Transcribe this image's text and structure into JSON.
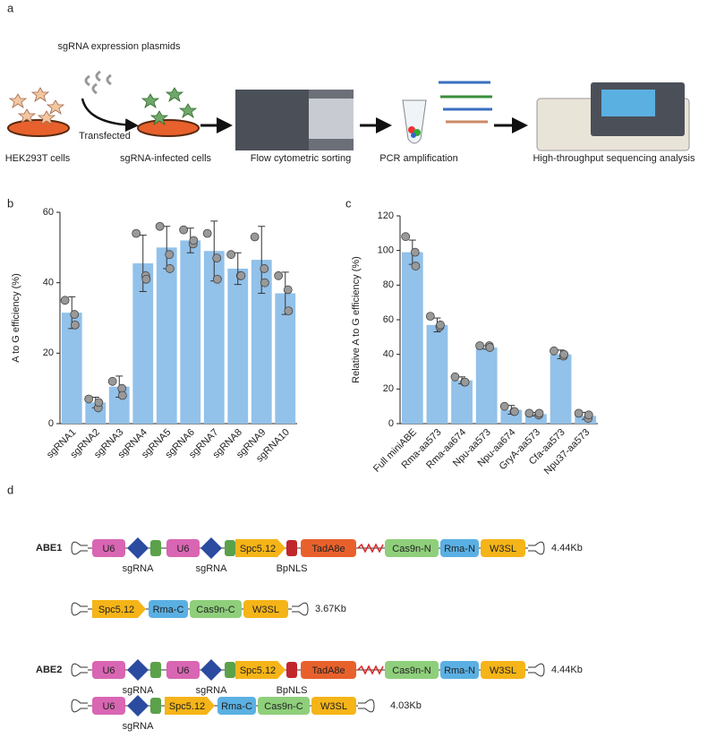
{
  "workflow": {
    "panel": "a",
    "plasmid_label": "sgRNA expression plasmids",
    "arrow_label": "Transfected",
    "steps": [
      "HEK293T cells",
      "sgRNA-infected cells",
      "Flow cytometric sorting",
      "PCR amplification",
      "High-throughput sequencing analysis"
    ]
  },
  "chart_data": [
    {
      "type": "bar",
      "panel": "b",
      "ylabel": "A to G efficiency (%)",
      "categories": [
        "sgRNA1",
        "sgRNA2",
        "sgRNA3",
        "sgRNA4",
        "sgRNA5",
        "sgRNA6",
        "sgRNA7",
        "sgRNA8",
        "sgRNA9",
        "sgRNA10"
      ],
      "values": [
        31.5,
        6,
        10.5,
        45.5,
        50,
        52,
        49,
        44,
        46.5,
        37
      ],
      "errors": [
        4.5,
        1.5,
        3,
        8,
        6,
        3.5,
        8.5,
        4.5,
        9.5,
        6
      ],
      "points": [
        [
          35,
          31,
          28
        ],
        [
          7,
          4.5,
          6
        ],
        [
          12,
          10,
          8
        ],
        [
          54,
          42,
          41
        ],
        [
          56,
          48,
          44
        ],
        [
          55,
          51,
          52
        ],
        [
          54,
          47,
          41
        ],
        [
          48,
          42,
          42
        ],
        [
          53,
          44,
          40
        ],
        [
          42,
          38,
          32
        ]
      ],
      "color": "#92c1e9",
      "point_color": "#999999",
      "ylim": [
        0,
        60
      ],
      "yticks": [
        0,
        20,
        40,
        60
      ]
    },
    {
      "type": "bar",
      "panel": "c",
      "ylabel": "Relative A to G efficiency (%)",
      "categories": [
        "Full miniABE",
        "Rma-aa573",
        "Rma-aa674",
        "Npu-aa573",
        "Npu-aa674",
        "GryA-aa573",
        "Cfa-aa573",
        "Npu37-aa573"
      ],
      "values": [
        99,
        57,
        25,
        44,
        8,
        5.5,
        40,
        4.5
      ],
      "errors": [
        7,
        4,
        2,
        1,
        2.5,
        1,
        2.5,
        2
      ],
      "points": [
        [
          108,
          99,
          91
        ],
        [
          62,
          56,
          57
        ],
        [
          27,
          24,
          24
        ],
        [
          45,
          45,
          44
        ],
        [
          10,
          7,
          7
        ],
        [
          6,
          5,
          6
        ],
        [
          42,
          39,
          40
        ],
        [
          6,
          3,
          5
        ]
      ],
      "color": "#92c1e9",
      "point_color": "#999999",
      "ylim": [
        0,
        120
      ],
      "yticks": [
        0,
        20,
        40,
        60,
        80,
        100,
        120
      ]
    }
  ],
  "constructs": {
    "panel": "d",
    "rows": [
      {
        "name": "ABE1",
        "parts": [
          "U6",
          "U6",
          "Spc5.12",
          "TadA8e",
          "Cas9n-N",
          "Rma-N",
          "W3SL"
        ],
        "notes": [
          "sgRNA",
          "sgRNA",
          "BpNLS"
        ],
        "size": "4.44Kb"
      },
      {
        "parts": [
          "Spc5.12",
          "Rma-C",
          "Cas9n-C",
          "W3SL"
        ],
        "size": "3.67Kb"
      },
      {
        "name": "ABE2",
        "parts": [
          "U6",
          "U6",
          "Spc5.12",
          "TadA8e",
          "Cas9n-N",
          "Rma-N",
          "W3SL"
        ],
        "notes": [
          "sgRNA",
          "sgRNA",
          "BpNLS"
        ],
        "size": "4.44Kb"
      },
      {
        "parts": [
          "U6",
          "Spc5.12",
          "Rma-C",
          "Cas9n-C",
          "W3SL"
        ],
        "notes": [
          "sgRNA"
        ],
        "size": "4.03Kb"
      }
    ]
  }
}
